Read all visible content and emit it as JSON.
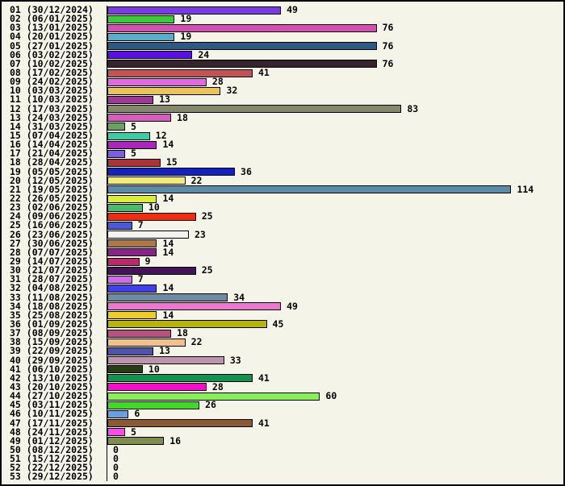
{
  "chart_data": {
    "type": "bar",
    "orientation": "horizontal",
    "title": "",
    "xlabel": "",
    "ylabel": "",
    "legend": null,
    "grid": false,
    "value_range_observed": [
      0,
      114
    ],
    "background_color": "#f5f4e8",
    "bar_outline_color": "#000000",
    "rows": [
      {
        "label": "01 (30/12/2024)",
        "value": 49,
        "color": "#7b3be2"
      },
      {
        "label": "02 (06/01/2025)",
        "value": 19,
        "color": "#3dc83e"
      },
      {
        "label": "03 (13/01/2025)",
        "value": 76,
        "color": "#d44fb2"
      },
      {
        "label": "04 (20/01/2025)",
        "value": 19,
        "color": "#58aec8"
      },
      {
        "label": "05 (27/01/2025)",
        "value": 76,
        "color": "#2c5a84"
      },
      {
        "label": "06 (03/02/2025)",
        "value": 24,
        "color": "#5a10e0"
      },
      {
        "label": "07 (10/02/2025)",
        "value": 76,
        "color": "#35232e"
      },
      {
        "label": "08 (17/02/2025)",
        "value": 41,
        "color": "#c25253"
      },
      {
        "label": "09 (24/02/2025)",
        "value": 28,
        "color": "#de6cde"
      },
      {
        "label": "10 (03/03/2025)",
        "value": 32,
        "color": "#edc25c"
      },
      {
        "label": "11 (10/03/2025)",
        "value": 13,
        "color": "#9c3a96"
      },
      {
        "label": "12 (17/03/2025)",
        "value": 83,
        "color": "#83896a"
      },
      {
        "label": "13 (24/03/2025)",
        "value": 18,
        "color": "#d45cbb"
      },
      {
        "label": "14 (31/03/2025)",
        "value": 5,
        "color": "#69a262"
      },
      {
        "label": "15 (07/04/2025)",
        "value": 12,
        "color": "#3dcba6"
      },
      {
        "label": "16 (14/04/2025)",
        "value": 14,
        "color": "#ab26bd"
      },
      {
        "label": "17 (21/04/2025)",
        "value": 5,
        "color": "#7c5ee0"
      },
      {
        "label": "18 (28/04/2025)",
        "value": 15,
        "color": "#a93438"
      },
      {
        "label": "19 (05/05/2025)",
        "value": 36,
        "color": "#1423c0"
      },
      {
        "label": "20 (12/05/2025)",
        "value": 22,
        "color": "#eeea7e"
      },
      {
        "label": "21 (19/05/2025)",
        "value": 114,
        "color": "#5a8ca8"
      },
      {
        "label": "22 (26/05/2025)",
        "value": 14,
        "color": "#dcef36"
      },
      {
        "label": "23 (02/06/2025)",
        "value": 10,
        "color": "#4cba6b"
      },
      {
        "label": "24 (09/06/2025)",
        "value": 25,
        "color": "#f22a10"
      },
      {
        "label": "25 (16/06/2025)",
        "value": 7,
        "color": "#4a59d6"
      },
      {
        "label": "26 (23/06/2025)",
        "value": 23,
        "color": "#f2f2ee"
      },
      {
        "label": "27 (30/06/2025)",
        "value": 14,
        "color": "#aa794a"
      },
      {
        "label": "28 (07/07/2025)",
        "value": 14,
        "color": "#8b2288"
      },
      {
        "label": "29 (14/07/2025)",
        "value": 9,
        "color": "#ba296a"
      },
      {
        "label": "30 (21/07/2025)",
        "value": 25,
        "color": "#431458"
      },
      {
        "label": "31 (28/07/2025)",
        "value": 7,
        "color": "#ce6bea"
      },
      {
        "label": "32 (04/08/2025)",
        "value": 14,
        "color": "#4040e6"
      },
      {
        "label": "33 (11/08/2025)",
        "value": 34,
        "color": "#6e8ba3"
      },
      {
        "label": "34 (18/08/2025)",
        "value": 49,
        "color": "#e87ad0"
      },
      {
        "label": "35 (25/08/2025)",
        "value": 14,
        "color": "#efcd22"
      },
      {
        "label": "36 (01/09/2025)",
        "value": 45,
        "color": "#b7b410"
      },
      {
        "label": "37 (08/09/2025)",
        "value": 18,
        "color": "#b45280"
      },
      {
        "label": "38 (15/09/2025)",
        "value": 22,
        "color": "#f2c08a"
      },
      {
        "label": "39 (22/09/2025)",
        "value": 13,
        "color": "#5054a8"
      },
      {
        "label": "40 (29/09/2025)",
        "value": 33,
        "color": "#bd93ae"
      },
      {
        "label": "41 (06/10/2025)",
        "value": 10,
        "color": "#2a3d12"
      },
      {
        "label": "42 (13/10/2025)",
        "value": 41,
        "color": "#12924e"
      },
      {
        "label": "43 (20/10/2025)",
        "value": 28,
        "color": "#ef10c8"
      },
      {
        "label": "44 (27/10/2025)",
        "value": 60,
        "color": "#8ced5c"
      },
      {
        "label": "45 (03/11/2025)",
        "value": 26,
        "color": "#3eda26"
      },
      {
        "label": "46 (10/11/2025)",
        "value": 6,
        "color": "#6b9ede"
      },
      {
        "label": "47 (17/11/2025)",
        "value": 41,
        "color": "#8b5a33"
      },
      {
        "label": "48 (24/11/2025)",
        "value": 5,
        "color": "#f64dea"
      },
      {
        "label": "49 (01/12/2025)",
        "value": 16,
        "color": "#7f8c4d"
      },
      {
        "label": "50 (08/12/2025)",
        "value": 0,
        "color": null
      },
      {
        "label": "51 (15/12/2025)",
        "value": 0,
        "color": null
      },
      {
        "label": "52 (22/12/2025)",
        "value": 0,
        "color": null
      },
      {
        "label": "53 (29/12/2025)",
        "value": 0,
        "color": null
      }
    ]
  }
}
